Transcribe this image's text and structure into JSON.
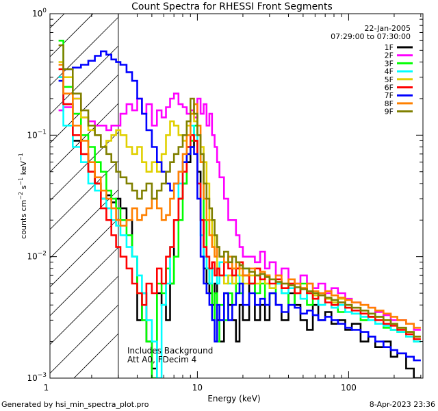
{
  "chart_data": {
    "type": "line",
    "title": "Count Spectra for RHESSI Front Segments",
    "xlabel": "Energy (keV)",
    "ylabel": "counts cm-2 s-1 keV-1",
    "ylabel_parts": {
      "main": "counts cm",
      "exp1": "−2",
      "mid": " s",
      "exp2": "−1",
      "end": " keV",
      "exp3": "−1"
    },
    "x_scale": "log",
    "y_scale": "log",
    "xlim": [
      1.06,
      310
    ],
    "ylim": [
      0.001,
      1.0
    ],
    "x_ticks": [
      {
        "value": 1,
        "label": "1"
      },
      {
        "value": 10,
        "label": "10"
      },
      {
        "value": 100,
        "label": "100"
      }
    ],
    "y_ticks": [
      {
        "value": 0.001,
        "base": "10",
        "exp": "−3"
      },
      {
        "value": 0.01,
        "base": "10",
        "exp": "−2"
      },
      {
        "value": 0.1,
        "base": "10",
        "exp": "−1"
      },
      {
        "value": 1.0,
        "base": "10",
        "exp": "0"
      }
    ],
    "cutoff_energy": 3.0,
    "hatched_region": [
      1.06,
      3.0
    ],
    "date": "22-Jan-2005",
    "time_range": "07:29:00 to 07:30:00",
    "annotation_lines": [
      "Includes Background",
      "Att A0, FDecim 4"
    ],
    "footer_left": "Generated by hsi_min_spectra_plot.pro",
    "footer_right": "8-Apr-2023 23:36",
    "energy_bins": [
      1.3,
      1.5,
      1.7,
      1.9,
      2.1,
      2.3,
      2.5,
      2.7,
      2.9,
      3.1,
      3.4,
      3.7,
      4.0,
      4.3,
      4.6,
      5.0,
      5.4,
      5.8,
      6.2,
      6.6,
      7.0,
      7.5,
      8.0,
      8.5,
      9.0,
      9.5,
      10.0,
      10.5,
      11.0,
      11.5,
      12.0,
      12.5,
      13.0,
      13.5,
      14.0,
      15.0,
      16.0,
      17.0,
      18.0,
      19.0,
      20.0,
      22.0,
      24.0,
      26.0,
      28.0,
      30.0,
      33.0,
      36.0,
      40.0,
      44.0,
      48.0,
      53.0,
      58.0,
      63.0,
      70.0,
      77.0,
      85.0,
      95.0,
      105.0,
      120.0,
      135.0,
      150.0,
      170.0,
      190.0,
      210.0,
      240.0,
      270.0,
      300.0
    ],
    "series": [
      {
        "name": "1F",
        "color": "#000000",
        "values": [
          0.3,
          0.18,
          0.09,
          0.07,
          0.05,
          0.04,
          0.03,
          0.032,
          0.028,
          0.03,
          0.025,
          0.02,
          0.01,
          0.003,
          0.005,
          0.002,
          0.0012,
          0.005,
          0.004,
          0.003,
          0.006,
          0.02,
          0.03,
          0.04,
          0.06,
          0.08,
          0.09,
          0.05,
          0.02,
          0.008,
          0.006,
          0.005,
          0.004,
          0.006,
          0.003,
          0.002,
          0.005,
          0.004,
          0.003,
          0.002,
          0.004,
          0.003,
          0.006,
          0.003,
          0.004,
          0.003,
          0.005,
          0.004,
          0.003,
          0.005,
          0.004,
          0.003,
          0.0025,
          0.004,
          0.003,
          0.0035,
          0.0028,
          0.003,
          0.0025,
          0.0028,
          0.002,
          0.0022,
          0.0018,
          0.002,
          0.0015,
          0.0016,
          0.0012,
          0.001
        ]
      },
      {
        "name": "2F",
        "color": "#ff00ff",
        "values": [
          0.16,
          0.17,
          0.2,
          0.14,
          0.13,
          0.12,
          0.12,
          0.11,
          0.12,
          0.12,
          0.15,
          0.18,
          0.16,
          0.2,
          0.15,
          0.18,
          0.12,
          0.16,
          0.14,
          0.17,
          0.2,
          0.22,
          0.18,
          0.17,
          0.15,
          0.16,
          0.14,
          0.2,
          0.15,
          0.18,
          0.12,
          0.15,
          0.1,
          0.08,
          0.06,
          0.045,
          0.03,
          0.02,
          0.02,
          0.015,
          0.012,
          0.01,
          0.01,
          0.009,
          0.011,
          0.008,
          0.009,
          0.007,
          0.008,
          0.0065,
          0.006,
          0.007,
          0.006,
          0.0055,
          0.006,
          0.005,
          0.0055,
          0.005,
          0.0045,
          0.0042,
          0.004,
          0.0038,
          0.0035,
          0.0033,
          0.003,
          0.003,
          0.0028,
          0.0025
        ]
      },
      {
        "name": "3F",
        "color": "#00ff00",
        "values": [
          0.6,
          0.25,
          0.15,
          0.1,
          0.08,
          0.06,
          0.05,
          0.035,
          0.03,
          0.025,
          0.02,
          0.015,
          0.01,
          0.005,
          0.003,
          0.002,
          0.001,
          0.006,
          0.005,
          0.008,
          0.006,
          0.01,
          0.02,
          0.04,
          0.07,
          0.09,
          0.12,
          0.1,
          0.06,
          0.02,
          0.008,
          0.006,
          0.003,
          0.005,
          0.002,
          0.004,
          0.003,
          0.005,
          0.004,
          0.006,
          0.005,
          0.007,
          0.006,
          0.005,
          0.006,
          0.004,
          0.005,
          0.006,
          0.005,
          0.004,
          0.005,
          0.006,
          0.004,
          0.005,
          0.004,
          0.0045,
          0.004,
          0.0035,
          0.0038,
          0.0034,
          0.003,
          0.0032,
          0.0028,
          0.0026,
          0.0025,
          0.0024,
          0.0022,
          0.002
        ]
      },
      {
        "name": "4F",
        "color": "#00ffff",
        "values": [
          0.3,
          0.12,
          0.08,
          0.06,
          0.04,
          0.035,
          0.03,
          0.025,
          0.02,
          0.018,
          0.015,
          0.012,
          0.01,
          0.007,
          0.005,
          0.003,
          0.002,
          0.001,
          0.004,
          0.006,
          0.012,
          0.02,
          0.04,
          0.06,
          0.08,
          0.12,
          0.1,
          0.04,
          0.015,
          0.01,
          0.008,
          0.006,
          0.008,
          0.007,
          0.006,
          0.009,
          0.007,
          0.006,
          0.008,
          0.007,
          0.006,
          0.008,
          0.006,
          0.007,
          0.0065,
          0.006,
          0.0055,
          0.006,
          0.005,
          0.0055,
          0.005,
          0.0045,
          0.005,
          0.0045,
          0.004,
          0.0045,
          0.0038,
          0.004,
          0.0035,
          0.0034,
          0.0032,
          0.003,
          0.0028,
          0.0027,
          0.0025,
          0.0024,
          0.0022,
          0.002
        ]
      },
      {
        "name": "5F",
        "color": "#e0d000",
        "values": [
          0.4,
          0.3,
          0.2,
          0.14,
          0.11,
          0.1,
          0.08,
          0.09,
          0.1,
          0.11,
          0.1,
          0.08,
          0.07,
          0.08,
          0.06,
          0.05,
          0.06,
          0.05,
          0.07,
          0.1,
          0.13,
          0.12,
          0.1,
          0.09,
          0.12,
          0.15,
          0.13,
          0.1,
          0.08,
          0.06,
          0.04,
          0.02,
          0.015,
          0.01,
          0.008,
          0.007,
          0.006,
          0.007,
          0.006,
          0.008,
          0.007,
          0.006,
          0.007,
          0.006,
          0.0065,
          0.006,
          0.0055,
          0.0065,
          0.0055,
          0.006,
          0.005,
          0.0055,
          0.005,
          0.0048,
          0.005,
          0.0045,
          0.0042,
          0.0045,
          0.004,
          0.0038,
          0.0036,
          0.0034,
          0.0032,
          0.003,
          0.0028,
          0.0026,
          0.0024,
          0.0022
        ]
      },
      {
        "name": "6F",
        "color": "#ff0000",
        "values": [
          0.35,
          0.18,
          0.1,
          0.07,
          0.05,
          0.04,
          0.025,
          0.02,
          0.015,
          0.012,
          0.01,
          0.008,
          0.006,
          0.005,
          0.004,
          0.006,
          0.005,
          0.008,
          0.006,
          0.01,
          0.012,
          0.02,
          0.03,
          0.05,
          0.08,
          0.1,
          0.09,
          0.04,
          0.02,
          0.012,
          0.01,
          0.008,
          0.009,
          0.007,
          0.008,
          0.007,
          0.009,
          0.008,
          0.007,
          0.008,
          0.009,
          0.007,
          0.006,
          0.008,
          0.0065,
          0.007,
          0.006,
          0.0065,
          0.0055,
          0.006,
          0.005,
          0.0055,
          0.005,
          0.0045,
          0.005,
          0.0042,
          0.004,
          0.0042,
          0.0038,
          0.0036,
          0.0034,
          0.0032,
          0.003,
          0.0028,
          0.0027,
          0.0025,
          0.0023,
          0.0021
        ]
      },
      {
        "name": "7F",
        "color": "#0000ff",
        "values": [
          0.28,
          0.35,
          0.36,
          0.38,
          0.41,
          0.45,
          0.49,
          0.46,
          0.42,
          0.4,
          0.38,
          0.33,
          0.28,
          0.2,
          0.15,
          0.11,
          0.08,
          0.06,
          0.05,
          0.04,
          0.035,
          0.04,
          0.05,
          0.06,
          0.07,
          0.08,
          0.07,
          0.03,
          0.01,
          0.006,
          0.005,
          0.004,
          0.003,
          0.002,
          0.004,
          0.003,
          0.005,
          0.003,
          0.004,
          0.005,
          0.006,
          0.004,
          0.005,
          0.004,
          0.0045,
          0.004,
          0.005,
          0.004,
          0.0035,
          0.004,
          0.0038,
          0.0034,
          0.0036,
          0.0033,
          0.003,
          0.0032,
          0.003,
          0.0028,
          0.0026,
          0.0025,
          0.0024,
          0.0022,
          0.002,
          0.0018,
          0.0017,
          0.0016,
          0.0015,
          0.0014
        ]
      },
      {
        "name": "8F",
        "color": "#ff8000",
        "values": [
          0.38,
          0.22,
          0.12,
          0.09,
          0.06,
          0.045,
          0.035,
          0.03,
          0.025,
          0.02,
          0.018,
          0.02,
          0.025,
          0.02,
          0.022,
          0.025,
          0.03,
          0.025,
          0.02,
          0.022,
          0.03,
          0.04,
          0.05,
          0.07,
          0.1,
          0.15,
          0.18,
          0.12,
          0.06,
          0.03,
          0.02,
          0.015,
          0.012,
          0.01,
          0.012,
          0.01,
          0.009,
          0.01,
          0.008,
          0.009,
          0.008,
          0.007,
          0.008,
          0.007,
          0.0075,
          0.007,
          0.0065,
          0.007,
          0.006,
          0.0065,
          0.006,
          0.0055,
          0.006,
          0.0052,
          0.005,
          0.0052,
          0.0048,
          0.0046,
          0.0044,
          0.0042,
          0.004,
          0.0038,
          0.0036,
          0.0034,
          0.0032,
          0.003,
          0.0028,
          0.0026
        ]
      },
      {
        "name": "9F",
        "color": "#808000",
        "values": [
          0.55,
          0.35,
          0.22,
          0.16,
          0.12,
          0.1,
          0.08,
          0.07,
          0.06,
          0.05,
          0.045,
          0.04,
          0.035,
          0.03,
          0.035,
          0.04,
          0.03,
          0.035,
          0.04,
          0.05,
          0.06,
          0.07,
          0.08,
          0.1,
          0.13,
          0.2,
          0.15,
          0.1,
          0.07,
          0.04,
          0.03,
          0.025,
          0.02,
          0.015,
          0.012,
          0.01,
          0.011,
          0.009,
          0.01,
          0.009,
          0.0085,
          0.008,
          0.0075,
          0.007,
          0.0072,
          0.0068,
          0.0065,
          0.0062,
          0.006,
          0.0058,
          0.0056,
          0.0054,
          0.0052,
          0.005,
          0.0048,
          0.0046,
          0.0044,
          0.0042,
          0.004,
          0.0038,
          0.0036,
          0.0034,
          0.0032,
          0.003,
          0.0028,
          0.0026,
          0.0024,
          0.0022
        ]
      }
    ]
  }
}
